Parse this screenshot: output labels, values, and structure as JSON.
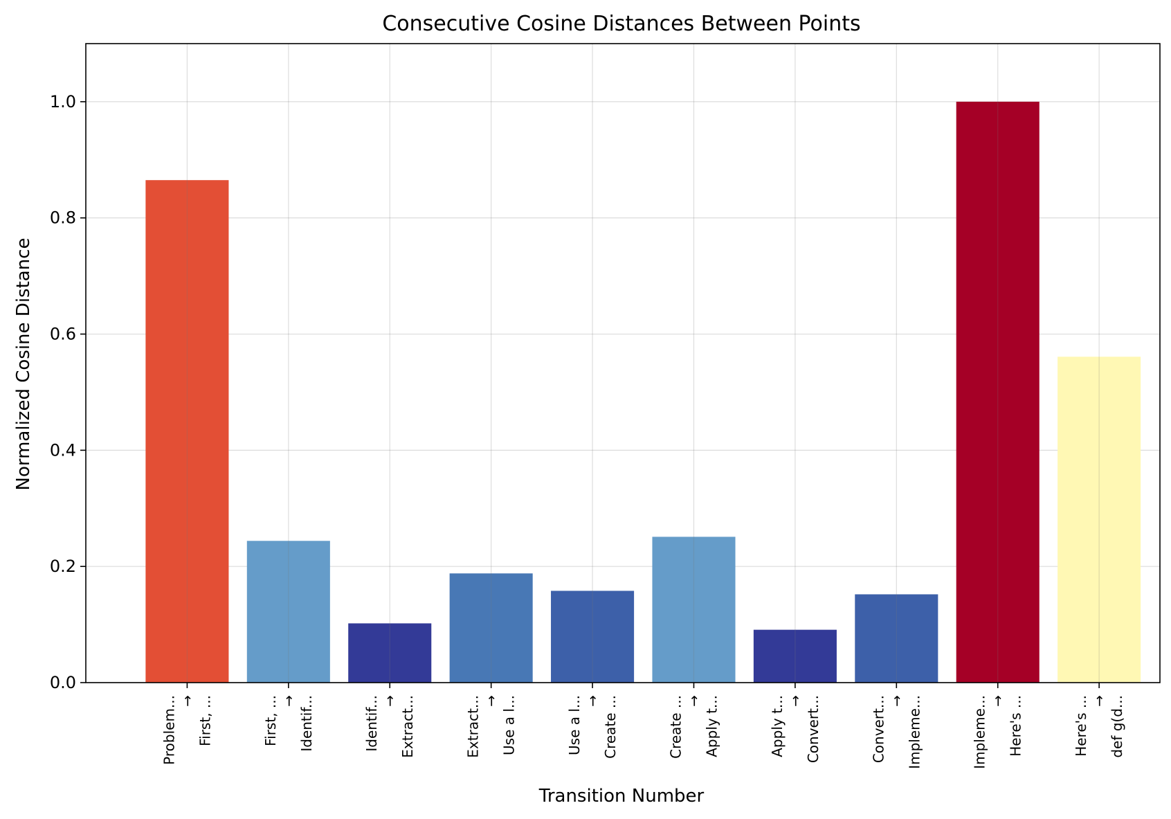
{
  "chart_data": {
    "type": "bar",
    "title": "Consecutive Cosine Distances Between Points",
    "xlabel": "Transition Number",
    "ylabel": "Normalized Cosine Distance",
    "ylim": [
      0,
      1.1
    ],
    "yticks": [
      "0.0",
      "0.2",
      "0.4",
      "0.6",
      "0.8",
      "1.0"
    ],
    "grid": true,
    "categories": [
      {
        "from": "Problem...",
        "arrow": "→",
        "to": "First, ..."
      },
      {
        "from": "First, ...",
        "arrow": "→",
        "to": "Identif..."
      },
      {
        "from": "Identif...",
        "arrow": "→",
        "to": "Extract..."
      },
      {
        "from": "Extract...",
        "arrow": "→",
        "to": "Use a l..."
      },
      {
        "from": "Use a l...",
        "arrow": "→",
        "to": "Create ..."
      },
      {
        "from": "Create ...",
        "arrow": "→",
        "to": "Apply t..."
      },
      {
        "from": "Apply t...",
        "arrow": "→",
        "to": "Convert..."
      },
      {
        "from": "Convert...",
        "arrow": "→",
        "to": "Impleme..."
      },
      {
        "from": "Impleme...",
        "arrow": "→",
        "to": "Here's ..."
      },
      {
        "from": "Here's ...",
        "arrow": "→",
        "to": "def g(d..."
      }
    ],
    "values": [
      0.865,
      0.244,
      0.102,
      0.188,
      0.158,
      0.251,
      0.091,
      0.152,
      1.0,
      0.561
    ],
    "colors": [
      "#e34f35",
      "#659cc9",
      "#333a97",
      "#4878b5",
      "#3d60a9",
      "#659cc9",
      "#333a97",
      "#3d60a9",
      "#a50026",
      "#fff8b4"
    ]
  }
}
